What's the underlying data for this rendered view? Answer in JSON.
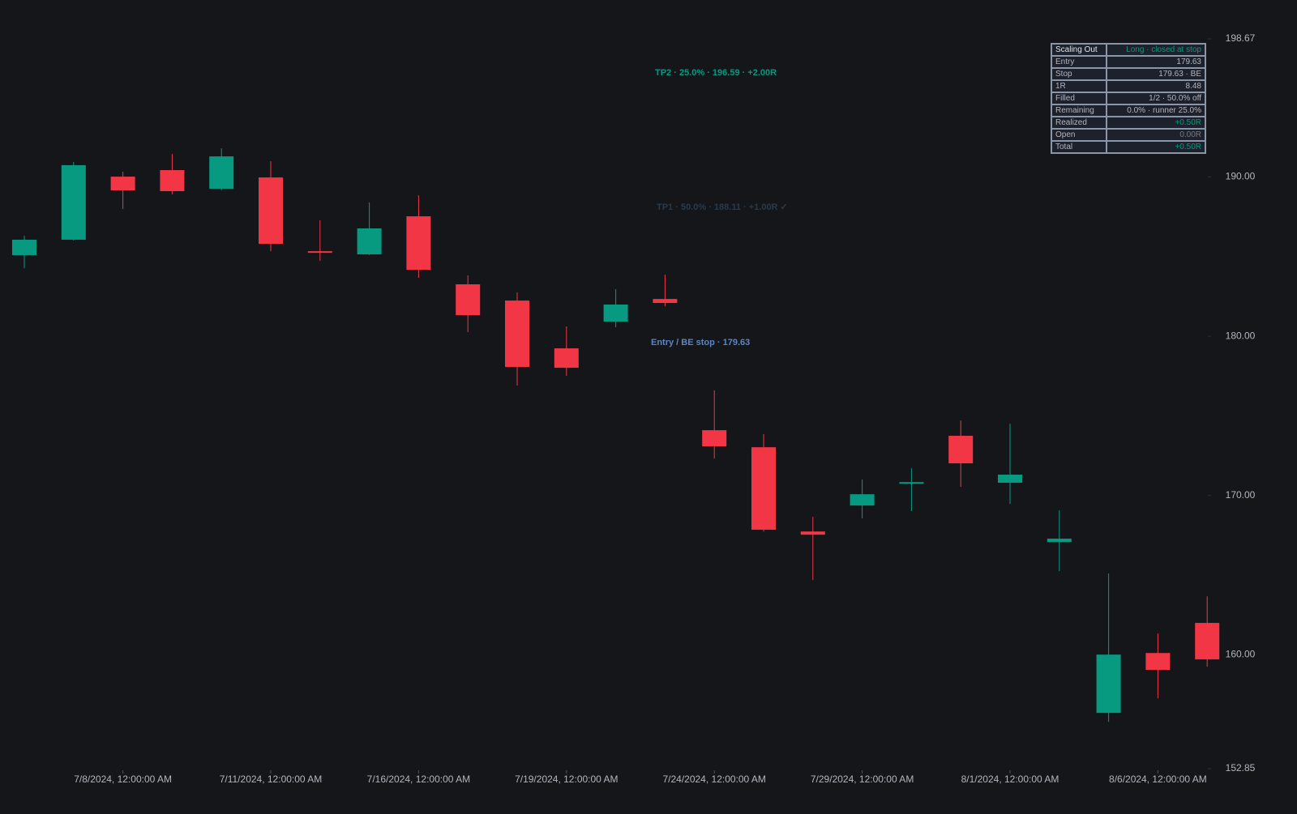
{
  "chart_data": {
    "type": "candlestick",
    "categories": [
      null,
      null,
      "7/8/2024, 12:00:00 AM",
      null,
      null,
      "7/11/2024, 12:00:00 AM",
      null,
      null,
      "7/16/2024, 12:00:00 AM",
      null,
      null,
      "7/19/2024, 12:00:00 AM",
      null,
      null,
      "7/24/2024, 12:00:00 AM",
      null,
      null,
      "7/29/2024, 12:00:00 AM",
      null,
      null,
      "8/1/2024, 12:00:00 AM",
      null,
      null,
      "8/6/2024, 12:00:00 AM",
      null
    ],
    "open": [
      185.09,
      186.06,
      190.02,
      190.43,
      189.26,
      189.97,
      185.34,
      185.14,
      187.53,
      183.26,
      182.24,
      179.24,
      180.92,
      182.34,
      174.1,
      173.03,
      167.74,
      169.37,
      170.74,
      173.75,
      170.8,
      167.08,
      156.35,
      160.11,
      162.0
    ],
    "high": [
      186.31,
      190.94,
      190.33,
      191.45,
      191.8,
      190.99,
      187.28,
      188.4,
      188.85,
      183.82,
      182.75,
      180.61,
      182.95,
      183.87,
      176.6,
      173.85,
      168.66,
      171.0,
      171.71,
      174.71,
      174.51,
      169.07,
      165.1,
      161.34,
      163.67
    ],
    "low": [
      184.27,
      186.0,
      187.99,
      188.9,
      189.16,
      185.34,
      184.73,
      185.1,
      183.67,
      180.26,
      176.9,
      177.51,
      180.56,
      181.88,
      172.32,
      167.74,
      164.69,
      168.56,
      169.02,
      170.54,
      169.47,
      165.25,
      155.79,
      157.27,
      159.25
    ],
    "close": [
      186.06,
      190.74,
      189.16,
      189.11,
      191.29,
      185.8,
      185.24,
      186.77,
      184.17,
      181.32,
      178.07,
      178.02,
      181.99,
      182.09,
      173.09,
      167.85,
      167.54,
      170.08,
      170.84,
      172.02,
      171.31,
      167.29,
      160.01,
      159.05,
      159.71
    ],
    "up_color": "#089981",
    "down_color": "#f23645",
    "ylim": [
      152.85,
      198.67
    ],
    "yticks": [
      198.67,
      {
        "value": 190,
        "label": "190.00"
      },
      {
        "value": 180,
        "label": "180.00"
      },
      {
        "value": 170,
        "label": "170.00"
      },
      {
        "value": 160,
        "label": "160.00"
      },
      152.85
    ],
    "annotations": [
      "TP2 · 25.0% · 196.59 · +2.00R",
      "TP1 · 50.0% · 188.11 · +1.00R ✓",
      "Entry / BE stop · 179.63"
    ]
  },
  "table": {
    "rows": [
      [
        "Scaling Out",
        "Long · closed at stop"
      ],
      [
        "Entry",
        "179.63"
      ],
      [
        "Stop",
        "179.63 · BE"
      ],
      [
        "1R",
        "8.48"
      ],
      [
        "Filled",
        "1/2 · 50.0% off"
      ],
      [
        "Remaining",
        "0.0% · runner 25.0%"
      ],
      [
        "Realized",
        "+0.50R"
      ],
      [
        "Open",
        "0.00R"
      ],
      [
        "Total",
        "+0.50R"
      ]
    ]
  }
}
